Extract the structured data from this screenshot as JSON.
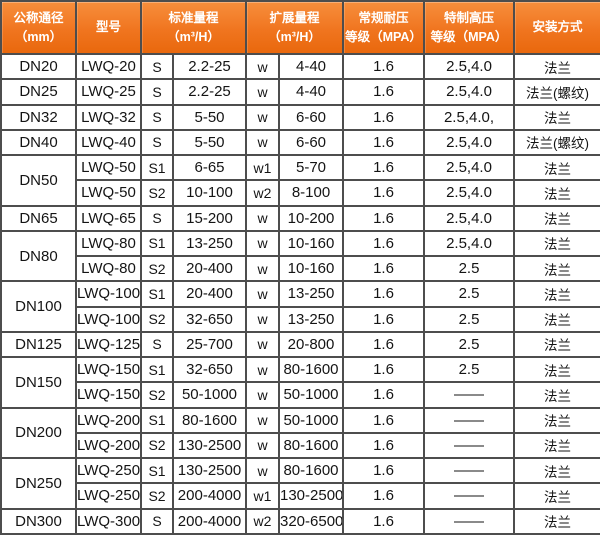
{
  "colors": {
    "header_orange": "#f0751f",
    "header_orange_light": "#f78e3c",
    "header_orange_dark": "#e9680d",
    "grid_line": "#4d4d4d",
    "header_text": "#ffffff",
    "body_text": "#141414"
  },
  "header": {
    "cells": [
      {
        "label": "公称通径\n（mm）"
      },
      {
        "label": "型号"
      },
      {
        "label": "标准量程\n（m³/H）"
      },
      {
        "label": "扩展量程\n（m³/H）"
      },
      {
        "label": "常规耐压\n等级（MPA）"
      },
      {
        "label": "特制高压\n等级（MPA）"
      },
      {
        "label": "安装方式"
      }
    ]
  },
  "groups": [
    {
      "dn": "DN20",
      "rows": [
        {
          "model": "LWQ-20",
          "s": "S",
          "std": "2.2-25",
          "w": "w",
          "ext": "4-40",
          "regular": "1.6",
          "high": "2.5,4.0",
          "install": "法兰"
        }
      ]
    },
    {
      "dn": "DN25",
      "rows": [
        {
          "model": "LWQ-25",
          "s": "S",
          "std": "2.2-25",
          "w": "w",
          "ext": "4-40",
          "regular": "1.6",
          "high": "2.5,4.0",
          "install": "法兰(螺纹)"
        }
      ]
    },
    {
      "dn": "DN32",
      "rows": [
        {
          "model": "LWQ-32",
          "s": "S",
          "std": "5-50",
          "w": "w",
          "ext": "6-60",
          "regular": "1.6",
          "high": "2.5,4.0,",
          "install": "法兰"
        }
      ]
    },
    {
      "dn": "DN40",
      "rows": [
        {
          "model": "LWQ-40",
          "s": "S",
          "std": "5-50",
          "w": "w",
          "ext": "6-60",
          "regular": "1.6",
          "high": "2.5,4.0",
          "install": "法兰(螺纹)"
        }
      ]
    },
    {
      "dn": "DN50",
      "rows": [
        {
          "model": "LWQ-50",
          "s": "S1",
          "std": "6-65",
          "w": "w1",
          "ext": "5-70",
          "regular": "1.6",
          "high": "2.5,4.0",
          "install": "法兰"
        },
        {
          "model": "LWQ-50",
          "s": "S2",
          "std": "10-100",
          "w": "w2",
          "ext": "8-100",
          "regular": "1.6",
          "high": "2.5,4.0",
          "install": "法兰"
        }
      ]
    },
    {
      "dn": "DN65",
      "rows": [
        {
          "model": "LWQ-65",
          "s": "S",
          "std": "15-200",
          "w": "w",
          "ext": "10-200",
          "regular": "1.6",
          "high": "2.5,4.0",
          "install": "法兰"
        }
      ]
    },
    {
      "dn": "DN80",
      "rows": [
        {
          "model": "LWQ-80",
          "s": "S1",
          "std": "13-250",
          "w": "w",
          "ext": "10-160",
          "regular": "1.6",
          "high": "2.5,4.0",
          "install": "法兰"
        },
        {
          "model": "LWQ-80",
          "s": "S2",
          "std": "20-400",
          "w": "w",
          "ext": "10-160",
          "regular": "1.6",
          "high": "2.5",
          "install": "法兰"
        }
      ]
    },
    {
      "dn": "DN100",
      "rows": [
        {
          "model": "LWQ-100",
          "s": "S1",
          "std": "20-400",
          "w": "w",
          "ext": "13-250",
          "regular": "1.6",
          "high": "2.5",
          "install": "法兰"
        },
        {
          "model": "LWQ-100",
          "s": "S2",
          "std": "32-650",
          "w": "w",
          "ext": "13-250",
          "regular": "1.6",
          "high": "2.5",
          "install": "法兰"
        }
      ]
    },
    {
      "dn": "DN125",
      "rows": [
        {
          "model": "LWQ-125",
          "s": "S",
          "std": "25-700",
          "w": "w",
          "ext": "20-800",
          "regular": "1.6",
          "high": "2.5",
          "install": "法兰"
        }
      ]
    },
    {
      "dn": "DN150",
      "rows": [
        {
          "model": "LWQ-150",
          "s": "S1",
          "std": "32-650",
          "w": "w",
          "ext": "80-1600",
          "regular": "1.6",
          "high": "2.5",
          "install": "法兰"
        },
        {
          "model": "LWQ-150",
          "s": "S2",
          "std": "50-1000",
          "w": "w",
          "ext": "50-1000",
          "regular": "1.6",
          "high": "——",
          "install": "法兰"
        }
      ]
    },
    {
      "dn": "DN200",
      "rows": [
        {
          "model": "LWQ-200",
          "s": "S1",
          "std": "80-1600",
          "w": "w",
          "ext": "50-1000",
          "regular": "1.6",
          "high": "——",
          "install": "法兰"
        },
        {
          "model": "LWQ-200",
          "s": "S2",
          "std": "130-2500",
          "w": "w",
          "ext": "80-1600",
          "regular": "1.6",
          "high": "——",
          "install": "法兰"
        }
      ]
    },
    {
      "dn": "DN250",
      "rows": [
        {
          "model": "LWQ-250",
          "s": "S1",
          "std": "130-2500",
          "w": "w",
          "ext": "80-1600",
          "regular": "1.6",
          "high": "——",
          "install": "法兰"
        },
        {
          "model": "LWQ-250",
          "s": "S2",
          "std": "200-4000",
          "w": "w1",
          "ext": "130-2500",
          "regular": "1.6",
          "high": "——",
          "install": "法兰"
        }
      ]
    },
    {
      "dn": "DN300",
      "rows": [
        {
          "model": "LWQ-300",
          "s": "S",
          "std": "200-4000",
          "w": "w2",
          "ext": "320-6500",
          "regular": "1.6",
          "high": "——",
          "install": "法兰"
        }
      ]
    }
  ]
}
